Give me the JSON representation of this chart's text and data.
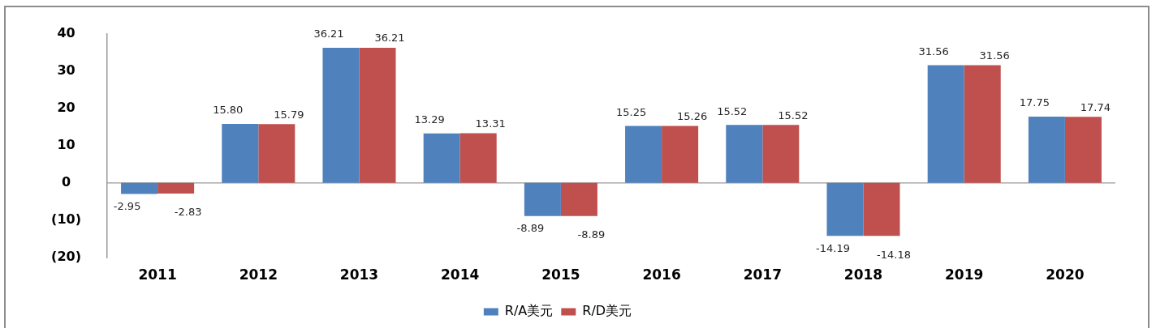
{
  "chart_data": {
    "type": "bar",
    "categories": [
      "2011",
      "2012",
      "2013",
      "2014",
      "2015",
      "2016",
      "2017",
      "2018",
      "2019",
      "2020"
    ],
    "series": [
      {
        "name": "R/A美元",
        "color": "#4f81bd",
        "values": [
          -2.95,
          15.8,
          36.21,
          13.29,
          -8.89,
          15.25,
          15.52,
          -14.19,
          31.56,
          17.75
        ],
        "value_labels": [
          "-2.95",
          "15.80",
          "36.21",
          "13.29",
          "-8.89",
          "15.25",
          "15.52",
          "-14.19",
          "31.56",
          "17.75"
        ]
      },
      {
        "name": "R/D美元",
        "color": "#c0504d",
        "values": [
          -2.83,
          15.79,
          36.21,
          13.31,
          -8.89,
          15.26,
          15.52,
          -14.18,
          31.56,
          17.74
        ],
        "value_labels": [
          "-2.83",
          "15.79",
          "36.21",
          "13.31",
          "-8.89",
          "15.26",
          "15.52",
          "-14.18",
          "31.56",
          "17.74"
        ]
      }
    ],
    "ylim": [
      -20,
      40
    ],
    "yticks": [
      {
        "value": -20,
        "label": "(20)"
      },
      {
        "value": -10,
        "label": "(10)"
      },
      0,
      10,
      20,
      30,
      40
    ],
    "legend": "bottom"
  }
}
